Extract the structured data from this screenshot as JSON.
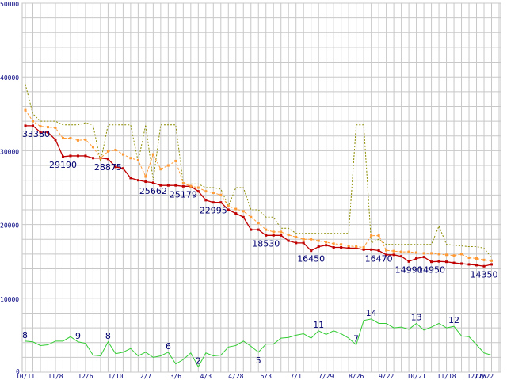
{
  "chart_data": {
    "type": "line",
    "grid": true,
    "ylim": [
      0,
      50000
    ],
    "yticks": [
      0,
      10000,
      20000,
      30000,
      40000,
      50000
    ],
    "xlim": [
      0,
      63
    ],
    "x_tick_labels": [
      {
        "x": 0,
        "label": "10/11"
      },
      {
        "x": 4,
        "label": "11/8"
      },
      {
        "x": 8,
        "label": "12/6"
      },
      {
        "x": 12,
        "label": "1/10"
      },
      {
        "x": 16,
        "label": "2/7"
      },
      {
        "x": 20,
        "label": "3/6"
      },
      {
        "x": 24,
        "label": "4/3"
      },
      {
        "x": 28,
        "label": "4/28"
      },
      {
        "x": 32,
        "label": "6/3"
      },
      {
        "x": 36,
        "label": "7/1"
      },
      {
        "x": 40,
        "label": "7/29"
      },
      {
        "x": 44,
        "label": "8/26"
      },
      {
        "x": 48,
        "label": "9/22"
      },
      {
        "x": 52,
        "label": "10/21"
      },
      {
        "x": 56,
        "label": "11/18"
      },
      {
        "x": 60,
        "label": "12/16"
      },
      {
        "x": 61,
        "label": "12/22"
      }
    ],
    "series": [
      {
        "color": "#c00000",
        "style": "solid-marker",
        "values": [
          33380,
          33380,
          32500,
          32500,
          31500,
          29190,
          29300,
          29300,
          29300,
          29000,
          29000,
          28875,
          27800,
          27600,
          26300,
          26000,
          25800,
          25662,
          25300,
          25300,
          25300,
          25179,
          25179,
          24500,
          23300,
          22995,
          22995,
          22000,
          21500,
          21000,
          19300,
          19300,
          18530,
          18530,
          18530,
          17800,
          17500,
          17500,
          16450,
          17000,
          17200,
          16900,
          16900,
          16800,
          16800,
          16600,
          16600,
          16470,
          15900,
          15900,
          15700,
          14990,
          15400,
          15600,
          14950,
          15000,
          14950,
          14800,
          14700,
          14600,
          14500,
          14350,
          14600
        ]
      },
      {
        "color": "#ff9933",
        "style": "dashed-marker",
        "values": [
          35500,
          34000,
          33300,
          33200,
          33100,
          31700,
          31700,
          31400,
          31500,
          30500,
          29000,
          29900,
          30100,
          29500,
          29000,
          28700,
          26500,
          29500,
          27500,
          28000,
          28600,
          25600,
          25200,
          25000,
          24500,
          24300,
          24000,
          22500,
          22100,
          21800,
          21000,
          20200,
          19300,
          19000,
          19000,
          18600,
          18300,
          18000,
          18000,
          17800,
          17600,
          17400,
          17300,
          17100,
          17000,
          16900,
          18500,
          18500,
          16500,
          16400,
          16300,
          16300,
          16200,
          16100,
          16100,
          16000,
          15900,
          15800,
          16000,
          15500,
          15400,
          15200,
          15100
        ]
      },
      {
        "color": "#8c8c00",
        "style": "dotted",
        "values": [
          39000,
          35000,
          34000,
          34000,
          34000,
          33500,
          33500,
          33500,
          33800,
          33500,
          28500,
          33500,
          33500,
          33500,
          33500,
          28500,
          33500,
          26000,
          33500,
          33500,
          33500,
          25500,
          25500,
          25500,
          25000,
          25000,
          24800,
          22500,
          25000,
          25000,
          22000,
          22000,
          21000,
          21000,
          19500,
          19500,
          18800,
          18800,
          18800,
          18800,
          18800,
          18800,
          18800,
          18800,
          33500,
          33500,
          17500,
          18000,
          17300,
          17300,
          17300,
          17300,
          17300,
          17300,
          17300,
          19800,
          17300,
          17200,
          17100,
          17000,
          17000,
          16800,
          15500
        ]
      },
      {
        "color": "#33cc33",
        "style": "solid",
        "values": [
          4200,
          4100,
          3600,
          3700,
          4200,
          4200,
          4800,
          4100,
          3900,
          2300,
          2200,
          4100,
          2500,
          2700,
          3200,
          2200,
          2700,
          2000,
          2200,
          2700,
          1100,
          1700,
          2600,
          700,
          2600,
          2200,
          2300,
          3400,
          3600,
          4200,
          3500,
          2700,
          3800,
          3800,
          4600,
          4700,
          5000,
          5200,
          4600,
          5600,
          5100,
          5600,
          5200,
          4600,
          3700,
          7000,
          7200,
          6600,
          6600,
          6000,
          6100,
          5800,
          6600,
          5700,
          6100,
          6600,
          6000,
          6200,
          4900,
          4800,
          3700,
          2600,
          2300
        ]
      }
    ],
    "data_labels": [
      {
        "series": 0,
        "index": 0,
        "text": "33380",
        "pos": "below"
      },
      {
        "series": 0,
        "index": 5,
        "text": "29190",
        "pos": "below"
      },
      {
        "series": 0,
        "index": 11,
        "text": "28875",
        "pos": "below"
      },
      {
        "series": 0,
        "index": 17,
        "text": "25662",
        "pos": "below"
      },
      {
        "series": 0,
        "index": 21,
        "text": "25179",
        "pos": "below"
      },
      {
        "series": 0,
        "index": 25,
        "text": "22995",
        "pos": "below"
      },
      {
        "series": 0,
        "index": 32,
        "text": "18530",
        "pos": "below"
      },
      {
        "series": 0,
        "index": 38,
        "text": "16450",
        "pos": "below"
      },
      {
        "series": 0,
        "index": 47,
        "text": "16470",
        "pos": "below"
      },
      {
        "series": 0,
        "index": 51,
        "text": "14990",
        "pos": "below"
      },
      {
        "series": 0,
        "index": 54,
        "text": "14950",
        "pos": "below"
      },
      {
        "series": 0,
        "index": 61,
        "text": "14350",
        "pos": "below"
      },
      {
        "series": 3,
        "index": 0,
        "text": "8",
        "pos": "above"
      },
      {
        "series": 3,
        "index": 7,
        "text": "9",
        "pos": "above"
      },
      {
        "series": 3,
        "index": 11,
        "text": "8",
        "pos": "above"
      },
      {
        "series": 3,
        "index": 19,
        "text": "6",
        "pos": "above"
      },
      {
        "series": 3,
        "index": 23,
        "text": "2",
        "pos": "above"
      },
      {
        "series": 3,
        "index": 31,
        "text": "5",
        "pos": "below"
      },
      {
        "series": 3,
        "index": 39,
        "text": "11",
        "pos": "above"
      },
      {
        "series": 3,
        "index": 44,
        "text": "7",
        "pos": "above"
      },
      {
        "series": 3,
        "index": 46,
        "text": "14",
        "pos": "above"
      },
      {
        "series": 3,
        "index": 52,
        "text": "13",
        "pos": "above"
      },
      {
        "series": 3,
        "index": 57,
        "text": "12",
        "pos": "above"
      }
    ]
  }
}
